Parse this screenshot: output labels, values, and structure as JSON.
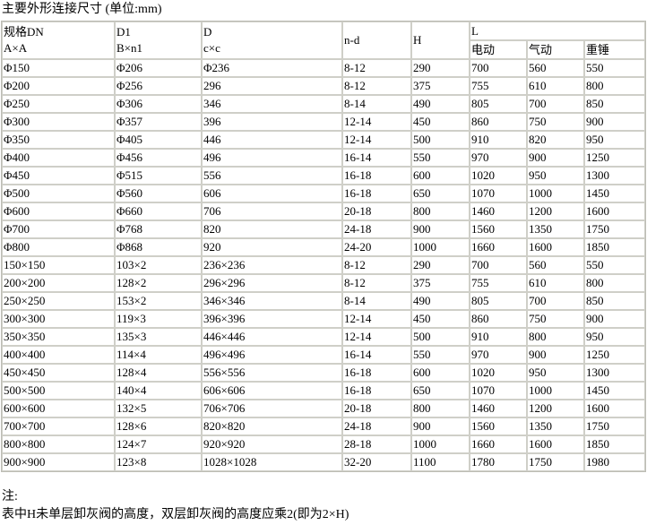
{
  "title": "主要外形连接尺寸 (单位:mm)",
  "headers": {
    "dn": [
      "规格DN",
      "A×A"
    ],
    "d1": [
      "D1",
      "B×n1"
    ],
    "d": [
      "D",
      "c×c"
    ],
    "nd": "n-d",
    "h": "H",
    "l": "L",
    "l_sub": [
      "电动",
      "气动",
      "重锤"
    ]
  },
  "rows": [
    [
      "Φ150",
      "Φ206",
      "Φ236",
      "8-12",
      "290",
      "700",
      "560",
      "550"
    ],
    [
      "Φ200",
      "Φ256",
      "296",
      "8-12",
      "375",
      "755",
      "610",
      "800"
    ],
    [
      "Φ250",
      "Φ306",
      "346",
      "8-14",
      "490",
      "805",
      "700",
      "850"
    ],
    [
      "Φ300",
      "Φ357",
      "396",
      "12-14",
      "450",
      "860",
      "750",
      "900"
    ],
    [
      "Φ350",
      "Φ405",
      "446",
      "12-14",
      "500",
      "910",
      "820",
      "950"
    ],
    [
      "Φ400",
      "Φ456",
      "496",
      "16-14",
      "550",
      "970",
      "900",
      "1250"
    ],
    [
      "Φ450",
      "Φ515",
      "556",
      "16-18",
      "600",
      "1020",
      "950",
      "1300"
    ],
    [
      "Φ500",
      "Φ560",
      "606",
      "16-18",
      "650",
      "1070",
      "1000",
      "1450"
    ],
    [
      "Φ600",
      "Φ660",
      "706",
      "20-18",
      "800",
      "1460",
      "1200",
      "1600"
    ],
    [
      "Φ700",
      "Φ768",
      "820",
      "24-18",
      "900",
      "1560",
      "1350",
      "1750"
    ],
    [
      "Φ800",
      "Φ868",
      "920",
      "24-20",
      "1000",
      "1660",
      "1600",
      "1850"
    ],
    [
      "150×150",
      "103×2",
      "236×236",
      "8-12",
      "290",
      "700",
      "560",
      "550"
    ],
    [
      "200×200",
      "128×2",
      "296×296",
      "8-12",
      "375",
      "755",
      "610",
      "800"
    ],
    [
      "250×250",
      "153×2",
      "346×346",
      "8-14",
      "490",
      "805",
      "700",
      "850"
    ],
    [
      "300×300",
      "119×3",
      "396×396",
      "12-14",
      "450",
      "860",
      "750",
      "900"
    ],
    [
      "350×350",
      "135×3",
      "446×446",
      "12-14",
      "500",
      "910",
      "800",
      "950"
    ],
    [
      "400×400",
      "114×4",
      "496×496",
      "16-14",
      "550",
      "970",
      "900",
      "1250"
    ],
    [
      "450×450",
      "128×4",
      "556×556",
      "16-18",
      "600",
      "1020",
      "950",
      "1300"
    ],
    [
      "500×500",
      "140×4",
      "606×606",
      "16-18",
      "650",
      "1070",
      "1000",
      "1450"
    ],
    [
      "600×600",
      "132×5",
      "706×706",
      "20-18",
      "800",
      "1460",
      "1200",
      "1600"
    ],
    [
      "700×700",
      "128×6",
      "820×820",
      "24-18",
      "900",
      "1560",
      "1350",
      "1750"
    ],
    [
      "800×800",
      "124×7",
      "920×920",
      "28-18",
      "1000",
      "1660",
      "1600",
      "1850"
    ],
    [
      "900×900",
      "123×8",
      "1028×1028",
      "32-20",
      "1100",
      "1780",
      "1750",
      "1980"
    ]
  ],
  "note": {
    "label": "注:",
    "text": "表中H未单层卸灰阀的高度，双层卸灰阀的高度应乘2(即为2×H)"
  }
}
